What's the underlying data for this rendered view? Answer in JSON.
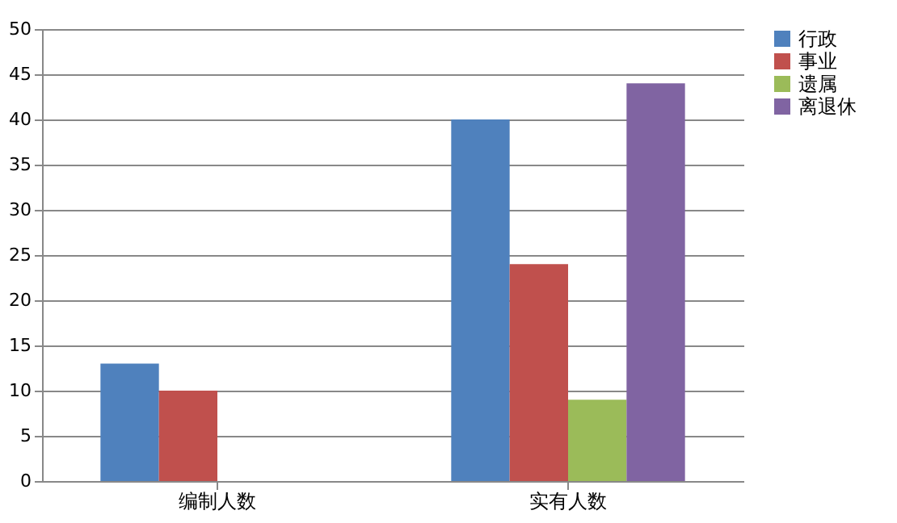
{
  "chart_data": {
    "type": "bar",
    "categories": [
      "编制人数",
      "实有人数"
    ],
    "series": [
      {
        "name": "行政",
        "color": "#4f81bd",
        "values": [
          13,
          40
        ]
      },
      {
        "name": "事业",
        "color": "#c0504d",
        "values": [
          10,
          24
        ]
      },
      {
        "name": "遗属",
        "color": "#9bbb59",
        "values": [
          null,
          9
        ]
      },
      {
        "name": "离退休",
        "color": "#8064a2",
        "values": [
          null,
          44
        ]
      }
    ],
    "ylim": [
      0,
      50
    ],
    "yticks": [
      0,
      5,
      10,
      15,
      20,
      25,
      30,
      35,
      40,
      45,
      50
    ],
    "grid": "y",
    "legend": "right"
  }
}
